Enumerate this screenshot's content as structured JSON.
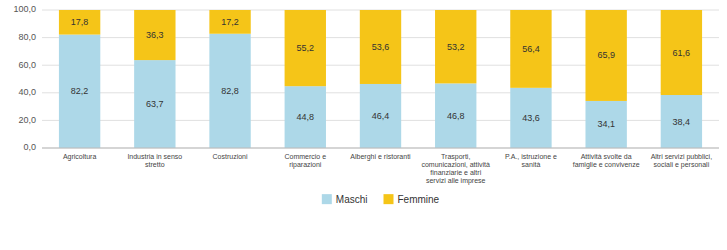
{
  "chart_data": {
    "type": "bar",
    "stacked": true,
    "categories": [
      "Agricoltura",
      "Industria in senso\nstretto",
      "Costruzioni",
      "Commercio e\nriparazioni",
      "Alberghi e ristoranti",
      "Trasporti,\ncomunicazioni, attività\nfinanziarie e altri\nservizi alle imprese",
      "P.A., istruzione e\nsanità",
      "Attività svolte da\nfamiglie e convivenze",
      "Altri servizi pubblici,\nsociali e personali"
    ],
    "series": [
      {
        "name": "Maschi",
        "color": "#add8e8",
        "values": [
          82.2,
          63.7,
          82.8,
          44.8,
          46.4,
          46.8,
          43.6,
          34.1,
          38.4
        ],
        "value_labels": [
          "82,2",
          "63,7",
          "82,8",
          "44,8",
          "46,4",
          "46,8",
          "43,6",
          "34,1",
          "38,4"
        ]
      },
      {
        "name": "Femmine",
        "color": "#f5c518",
        "values": [
          17.8,
          36.3,
          17.2,
          55.2,
          53.6,
          53.2,
          56.4,
          65.9,
          61.6
        ],
        "value_labels": [
          "17,8",
          "36,3",
          "17,2",
          "55,2",
          "53,6",
          "53,2",
          "56,4",
          "65,9",
          "61,6"
        ]
      }
    ],
    "ylim": [
      0,
      100
    ],
    "yticks": [
      {
        "value": 0,
        "label": "0,0"
      },
      {
        "value": 20,
        "label": "20,0"
      },
      {
        "value": 40,
        "label": "40,0"
      },
      {
        "value": 60,
        "label": "60,0"
      },
      {
        "value": 80,
        "label": "80,0"
      },
      {
        "value": 100,
        "label": "100,0"
      }
    ],
    "grid": true,
    "legend": "bottom",
    "data_labels": true
  }
}
